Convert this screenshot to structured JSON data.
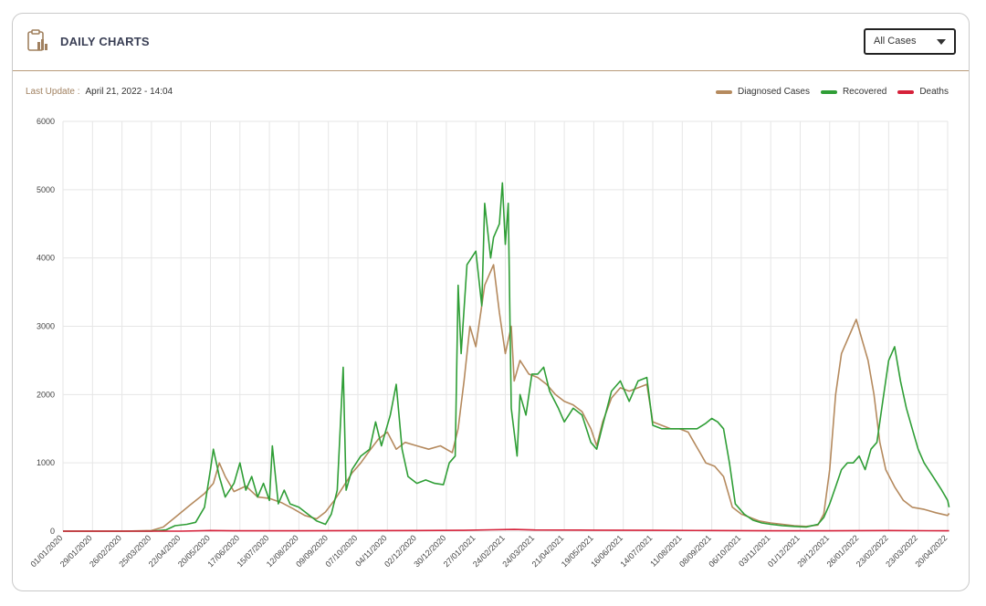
{
  "header": {
    "title": "DAILY CHARTS",
    "icon": "clipboard-chart-icon"
  },
  "filter": {
    "selected": "All Cases"
  },
  "update": {
    "label": "Last Update :",
    "value": "April 21, 2022 - 14:04"
  },
  "colors": {
    "diagnosed": "#b58a5e",
    "recovered": "#2f9e36",
    "deaths": "#d6213a",
    "grid": "#e6e6e6"
  },
  "chart_data": {
    "type": "line",
    "xlabel": "",
    "ylabel": "",
    "ylim": [
      0,
      6000
    ],
    "yticks": [
      0,
      1000,
      2000,
      3000,
      4000,
      5000,
      6000
    ],
    "grid": true,
    "legend_position": "top-right",
    "xticks": [
      "01/01/2020",
      "29/01/2020",
      "26/02/2020",
      "25/03/2020",
      "22/04/2020",
      "20/05/2020",
      "17/06/2020",
      "15/07/2020",
      "12/08/2020",
      "09/09/2020",
      "07/10/2020",
      "04/11/2020",
      "02/12/2020",
      "30/12/2020",
      "27/01/2021",
      "24/02/2021",
      "24/03/2021",
      "21/04/2021",
      "19/05/2021",
      "16/06/2021",
      "14/07/2021",
      "11/08/2021",
      "08/09/2021",
      "06/10/2021",
      "03/11/2021",
      "01/12/2021",
      "29/12/2021",
      "26/01/2022",
      "23/02/2022",
      "23/03/2022",
      "20/04/2022"
    ],
    "series": [
      {
        "name": "Diagnosed Cases",
        "key": "diagnosed",
        "points": [
          [
            0,
            0
          ],
          [
            2,
            0
          ],
          [
            3,
            10
          ],
          [
            3.4,
            60
          ],
          [
            3.8,
            200
          ],
          [
            4.3,
            380
          ],
          [
            4.8,
            550
          ],
          [
            5.1,
            700
          ],
          [
            5.3,
            1000
          ],
          [
            5.5,
            800
          ],
          [
            5.8,
            580
          ],
          [
            6.2,
            660
          ],
          [
            6.6,
            500
          ],
          [
            7,
            480
          ],
          [
            7.4,
            420
          ],
          [
            7.8,
            330
          ],
          [
            8.2,
            230
          ],
          [
            8.6,
            180
          ],
          [
            8.9,
            280
          ],
          [
            9.2,
            450
          ],
          [
            9.5,
            650
          ],
          [
            9.8,
            850
          ],
          [
            10.1,
            1000
          ],
          [
            10.4,
            1180
          ],
          [
            10.7,
            1350
          ],
          [
            11,
            1450
          ],
          [
            11.3,
            1200
          ],
          [
            11.6,
            1300
          ],
          [
            12,
            1250
          ],
          [
            12.4,
            1200
          ],
          [
            12.8,
            1250
          ],
          [
            13.2,
            1150
          ],
          [
            13.4,
            1500
          ],
          [
            13.6,
            2200
          ],
          [
            13.8,
            3000
          ],
          [
            14,
            2700
          ],
          [
            14.3,
            3600
          ],
          [
            14.6,
            3900
          ],
          [
            14.8,
            3200
          ],
          [
            15,
            2600
          ],
          [
            15.2,
            3000
          ],
          [
            15.3,
            2200
          ],
          [
            15.5,
            2500
          ],
          [
            15.8,
            2300
          ],
          [
            16.1,
            2250
          ],
          [
            16.4,
            2150
          ],
          [
            16.7,
            2000
          ],
          [
            17,
            1900
          ],
          [
            17.3,
            1850
          ],
          [
            17.6,
            1750
          ],
          [
            17.9,
            1500
          ],
          [
            18.1,
            1250
          ],
          [
            18.3,
            1600
          ],
          [
            18.6,
            1950
          ],
          [
            18.9,
            2100
          ],
          [
            19.2,
            2050
          ],
          [
            19.5,
            2100
          ],
          [
            19.8,
            2150
          ],
          [
            20,
            1600
          ],
          [
            20.3,
            1550
          ],
          [
            20.6,
            1500
          ],
          [
            20.9,
            1500
          ],
          [
            21.2,
            1450
          ],
          [
            21.4,
            1300
          ],
          [
            21.6,
            1150
          ],
          [
            21.8,
            1000
          ],
          [
            22.1,
            950
          ],
          [
            22.4,
            800
          ],
          [
            22.7,
            350
          ],
          [
            23,
            250
          ],
          [
            23.3,
            200
          ],
          [
            23.6,
            150
          ],
          [
            24,
            120
          ],
          [
            24.4,
            100
          ],
          [
            24.8,
            80
          ],
          [
            25.2,
            70
          ],
          [
            25.6,
            90
          ],
          [
            25.8,
            250
          ],
          [
            26,
            900
          ],
          [
            26.2,
            2000
          ],
          [
            26.4,
            2600
          ],
          [
            26.7,
            2900
          ],
          [
            26.9,
            3100
          ],
          [
            27.1,
            2800
          ],
          [
            27.3,
            2500
          ],
          [
            27.5,
            2000
          ],
          [
            27.7,
            1300
          ],
          [
            27.9,
            900
          ],
          [
            28.2,
            650
          ],
          [
            28.5,
            450
          ],
          [
            28.8,
            350
          ],
          [
            29.2,
            320
          ],
          [
            29.6,
            270
          ],
          [
            30,
            230
          ],
          [
            30.05,
            260
          ]
        ]
      },
      {
        "name": "Recovered",
        "key": "recovered",
        "points": [
          [
            0,
            0
          ],
          [
            3,
            0
          ],
          [
            3.5,
            20
          ],
          [
            3.8,
            80
          ],
          [
            4.2,
            100
          ],
          [
            4.5,
            130
          ],
          [
            4.8,
            350
          ],
          [
            5,
            900
          ],
          [
            5.1,
            1200
          ],
          [
            5.3,
            800
          ],
          [
            5.5,
            500
          ],
          [
            5.8,
            700
          ],
          [
            6,
            1000
          ],
          [
            6.2,
            600
          ],
          [
            6.4,
            800
          ],
          [
            6.6,
            500
          ],
          [
            6.8,
            700
          ],
          [
            7,
            450
          ],
          [
            7.1,
            1250
          ],
          [
            7.3,
            400
          ],
          [
            7.5,
            600
          ],
          [
            7.7,
            400
          ],
          [
            8,
            350
          ],
          [
            8.3,
            250
          ],
          [
            8.6,
            150
          ],
          [
            8.9,
            100
          ],
          [
            9.1,
            250
          ],
          [
            9.3,
            600
          ],
          [
            9.5,
            2400
          ],
          [
            9.6,
            600
          ],
          [
            9.8,
            900
          ],
          [
            10.1,
            1100
          ],
          [
            10.4,
            1200
          ],
          [
            10.6,
            1600
          ],
          [
            10.8,
            1250
          ],
          [
            11.1,
            1700
          ],
          [
            11.3,
            2150
          ],
          [
            11.5,
            1200
          ],
          [
            11.7,
            800
          ],
          [
            12,
            700
          ],
          [
            12.3,
            750
          ],
          [
            12.6,
            700
          ],
          [
            12.9,
            680
          ],
          [
            13.1,
            1000
          ],
          [
            13.3,
            1100
          ],
          [
            13.4,
            3600
          ],
          [
            13.5,
            2600
          ],
          [
            13.7,
            3900
          ],
          [
            14,
            4100
          ],
          [
            14.2,
            3300
          ],
          [
            14.3,
            4800
          ],
          [
            14.5,
            4000
          ],
          [
            14.6,
            4300
          ],
          [
            14.8,
            4500
          ],
          [
            14.9,
            5100
          ],
          [
            15,
            4200
          ],
          [
            15.1,
            4800
          ],
          [
            15.2,
            1800
          ],
          [
            15.4,
            1100
          ],
          [
            15.5,
            2000
          ],
          [
            15.7,
            1700
          ],
          [
            15.9,
            2300
          ],
          [
            16.1,
            2300
          ],
          [
            16.3,
            2400
          ],
          [
            16.5,
            2050
          ],
          [
            16.8,
            1800
          ],
          [
            17,
            1600
          ],
          [
            17.3,
            1800
          ],
          [
            17.6,
            1700
          ],
          [
            17.9,
            1300
          ],
          [
            18.1,
            1200
          ],
          [
            18.3,
            1550
          ],
          [
            18.6,
            2050
          ],
          [
            18.9,
            2200
          ],
          [
            19.2,
            1900
          ],
          [
            19.5,
            2200
          ],
          [
            19.8,
            2250
          ],
          [
            20,
            1550
          ],
          [
            20.3,
            1500
          ],
          [
            20.6,
            1500
          ],
          [
            20.9,
            1500
          ],
          [
            21.2,
            1500
          ],
          [
            21.5,
            1500
          ],
          [
            21.8,
            1580
          ],
          [
            22,
            1650
          ],
          [
            22.2,
            1600
          ],
          [
            22.4,
            1500
          ],
          [
            22.6,
            1000
          ],
          [
            22.8,
            400
          ],
          [
            23.1,
            250
          ],
          [
            23.4,
            160
          ],
          [
            23.7,
            120
          ],
          [
            24,
            100
          ],
          [
            24.4,
            80
          ],
          [
            24.8,
            70
          ],
          [
            25.2,
            60
          ],
          [
            25.6,
            100
          ],
          [
            25.8,
            200
          ],
          [
            26,
            400
          ],
          [
            26.2,
            650
          ],
          [
            26.4,
            900
          ],
          [
            26.6,
            1000
          ],
          [
            26.8,
            1000
          ],
          [
            27,
            1100
          ],
          [
            27.2,
            900
          ],
          [
            27.4,
            1200
          ],
          [
            27.6,
            1300
          ],
          [
            27.8,
            1900
          ],
          [
            28,
            2500
          ],
          [
            28.2,
            2700
          ],
          [
            28.4,
            2200
          ],
          [
            28.6,
            1800
          ],
          [
            28.8,
            1500
          ],
          [
            29,
            1200
          ],
          [
            29.2,
            1000
          ],
          [
            29.5,
            800
          ],
          [
            29.8,
            600
          ],
          [
            30,
            450
          ],
          [
            30.05,
            350
          ]
        ]
      },
      {
        "name": "Deaths",
        "key": "deaths",
        "points": [
          [
            0,
            0
          ],
          [
            4,
            0
          ],
          [
            5,
            10
          ],
          [
            6,
            5
          ],
          [
            8,
            5
          ],
          [
            10,
            8
          ],
          [
            12,
            10
          ],
          [
            13.5,
            12
          ],
          [
            14.5,
            20
          ],
          [
            15.3,
            25
          ],
          [
            16,
            18
          ],
          [
            18,
            15
          ],
          [
            20,
            12
          ],
          [
            22,
            10
          ],
          [
            24,
            5
          ],
          [
            26,
            5
          ],
          [
            27,
            8
          ],
          [
            28,
            10
          ],
          [
            30.05,
            5
          ]
        ]
      }
    ]
  }
}
